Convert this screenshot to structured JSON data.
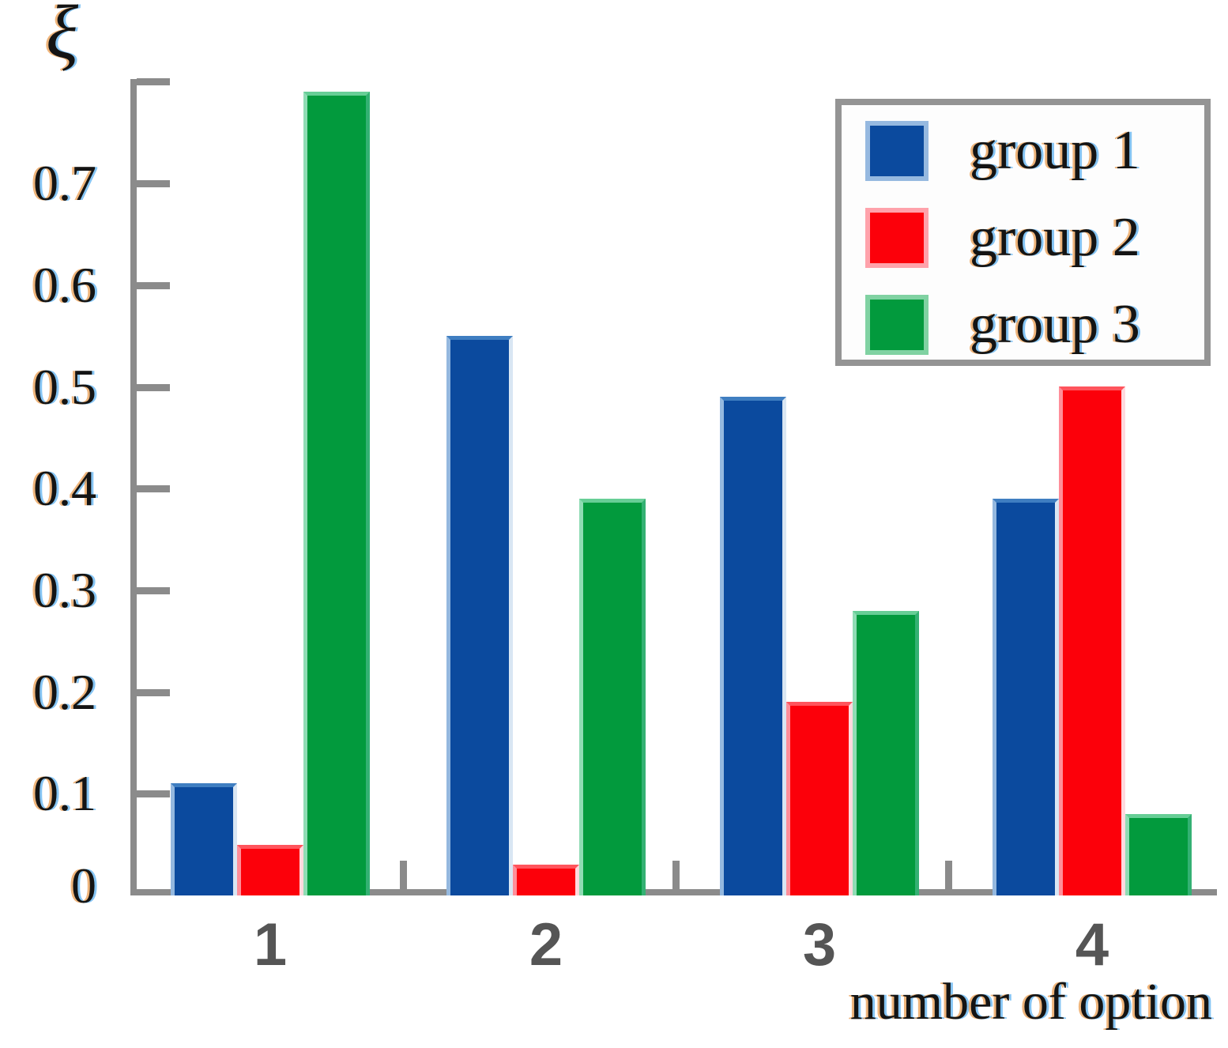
{
  "chart_data": {
    "type": "bar",
    "title": "",
    "ylabel": "ξ",
    "xlabel": "number of option",
    "categories": [
      "1",
      "2",
      "3",
      "4"
    ],
    "series": [
      {
        "name": "group 1",
        "color": "#0b4a9e",
        "values": [
          0.11,
          0.55,
          0.49,
          0.39
        ]
      },
      {
        "name": "group 2",
        "color": "#fc000a",
        "values": [
          0.05,
          0.03,
          0.19,
          0.5
        ]
      },
      {
        "name": "group 3",
        "color": "#029a3d",
        "values": [
          0.79,
          0.39,
          0.28,
          0.08
        ]
      }
    ],
    "ylim": [
      0,
      0.8
    ],
    "y_tick_labels": [
      "0",
      "0.1",
      "0.2",
      "0.3",
      "0.4",
      "0.5",
      "0.6",
      "0.7"
    ],
    "grid": false,
    "legend_position": "top-right",
    "axis_color": "#8b8b8b"
  }
}
